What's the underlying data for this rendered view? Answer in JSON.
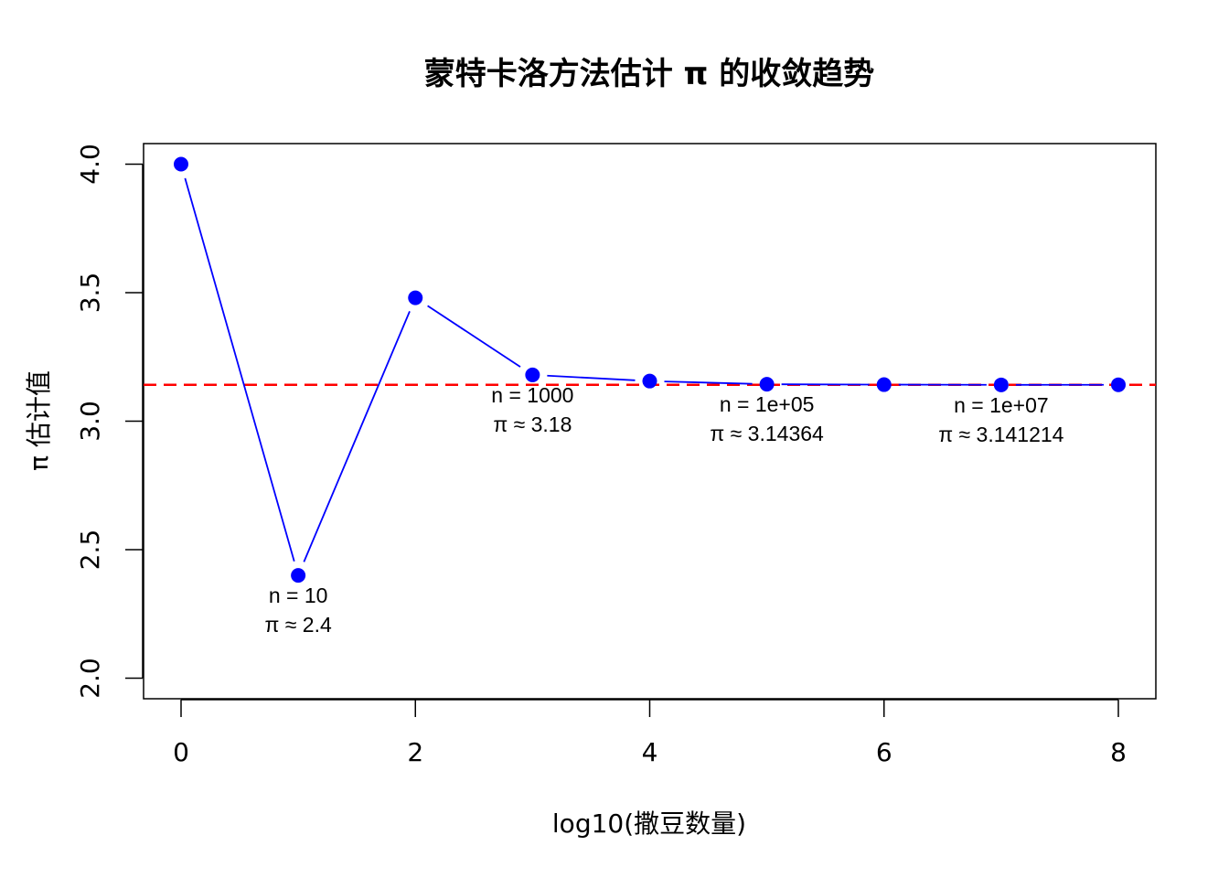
{
  "chart_data": {
    "type": "line",
    "title": "蒙特卡洛方法估计 π 的收敛趋势",
    "xlabel": "log10(撒豆数量)",
    "ylabel": "π 估计值",
    "xlim": [
      -0.32,
      8.32
    ],
    "ylim": [
      1.92,
      4.08
    ],
    "x_ticks": [
      "0",
      "2",
      "4",
      "6",
      "8"
    ],
    "y_ticks": [
      "2.0",
      "2.5",
      "3.0",
      "3.5",
      "4.0"
    ],
    "grid": false,
    "series": [
      {
        "x": [
          0,
          1,
          2,
          3,
          4,
          5,
          6,
          7,
          8
        ],
        "values": [
          4.0,
          2.4,
          3.48,
          3.18,
          3.156,
          3.14364,
          3.1422,
          3.141214,
          3.14159
        ]
      }
    ],
    "reference_line": {
      "y": 3.14159,
      "style": "dashed"
    },
    "annotations": [
      {
        "x": 1,
        "line1": "n = 10",
        "line2": "π ≈ 2.4"
      },
      {
        "x": 3,
        "line1": "n = 1000",
        "line2": "π ≈ 3.18"
      },
      {
        "x": 5,
        "line1": "n = 1e+05",
        "line2": "π ≈ 3.14364"
      },
      {
        "x": 7,
        "line1": "n = 1e+07",
        "line2": "π ≈ 3.141214"
      }
    ],
    "colors": {
      "line": "#0000ff",
      "points": "#0000ff",
      "reference": "#ff0000",
      "axis": "#000000"
    }
  }
}
